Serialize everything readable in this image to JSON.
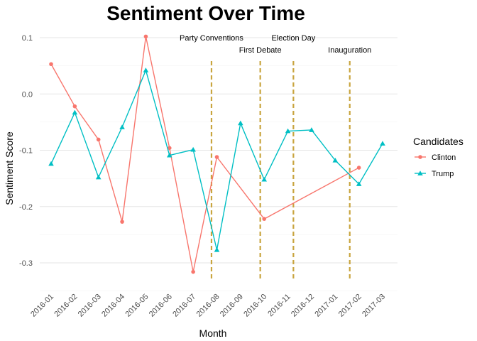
{
  "chart_data": {
    "type": "line",
    "title": "Sentiment Over Time",
    "xlabel": "Month",
    "ylabel": "Sentiment Score",
    "categories": [
      "2016-01",
      "2016-02",
      "2016-03",
      "2016-04",
      "2016-05",
      "2016-06",
      "2016-07",
      "2016-08",
      "2016-09",
      "2016-10",
      "2016-11",
      "2016-12",
      "2017-01",
      "2017-02",
      "2017-03"
    ],
    "ylim": [
      -0.35,
      0.12
    ],
    "y_ticks": [
      0.1,
      0.0,
      -0.1,
      -0.2,
      -0.3
    ],
    "y_tick_labels": [
      "0.1",
      "0.0",
      "-0.1",
      "-0.2",
      "-0.3"
    ],
    "grid": true,
    "legend": {
      "title": "Candidates",
      "position": "right"
    },
    "series": [
      {
        "name": "Clinton",
        "color": "#F8766D",
        "marker": "circle",
        "points": [
          {
            "x": "2016-01",
            "y": 0.053
          },
          {
            "x": "2016-02",
            "y": -0.022
          },
          {
            "x": "2016-03",
            "y": -0.081
          },
          {
            "x": "2016-04",
            "y": -0.227
          },
          {
            "x": "2016-05",
            "y": 0.102
          },
          {
            "x": "2016-06",
            "y": -0.096
          },
          {
            "x": "2016-07",
            "y": -0.316
          },
          {
            "x": "2016-08",
            "y": -0.112
          },
          {
            "x": "2016-10",
            "y": -0.222
          },
          {
            "x": "2017-02",
            "y": -0.131
          }
        ]
      },
      {
        "name": "Trump",
        "color": "#00BFC4",
        "marker": "triangle",
        "points": [
          {
            "x": "2016-01",
            "y": -0.124
          },
          {
            "x": "2016-02",
            "y": -0.033
          },
          {
            "x": "2016-03",
            "y": -0.148
          },
          {
            "x": "2016-04",
            "y": -0.059
          },
          {
            "x": "2016-05",
            "y": 0.042
          },
          {
            "x": "2016-06",
            "y": -0.109
          },
          {
            "x": "2016-07",
            "y": -0.099
          },
          {
            "x": "2016-08",
            "y": -0.277
          },
          {
            "x": "2016-09",
            "y": -0.052
          },
          {
            "x": "2016-10",
            "y": -0.152
          },
          {
            "x": "2016-11",
            "y": -0.066
          },
          {
            "x": "2016-12",
            "y": -0.064
          },
          {
            "x": "2017-01",
            "y": -0.118
          },
          {
            "x": "2017-02",
            "y": -0.16
          },
          {
            "x": "2017-03",
            "y": -0.088
          }
        ]
      }
    ],
    "annotations": [
      {
        "label": "Party Conventions",
        "date": "2016-07-25"
      },
      {
        "label": "First Debate",
        "date": "2016-09-26"
      },
      {
        "label": "Election Day",
        "date": "2016-11-08"
      },
      {
        "label": "Inauguration",
        "date": "2017-01-20"
      }
    ],
    "annotation_color": "#C9A53F"
  }
}
